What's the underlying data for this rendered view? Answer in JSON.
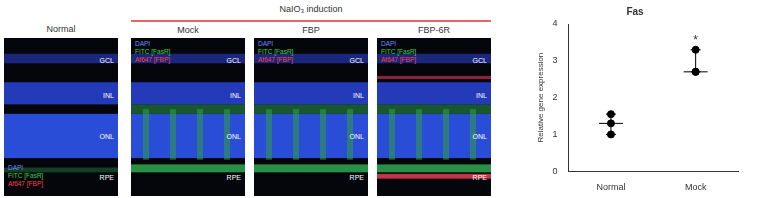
{
  "panels": {
    "header": "NaIO₃ induction",
    "items": [
      {
        "label": "Normal",
        "layers": [
          "GCL",
          "INL",
          "ONL",
          "RPE"
        ],
        "stains": [
          "DAPI",
          "FITC [FasR]",
          "Af647 [FBP]"
        ]
      },
      {
        "label": "Mock",
        "layers": [
          "GCL",
          "INL",
          "ONL",
          "RPE"
        ],
        "stains": [
          "DAPI",
          "FITC [FasR]",
          "Af647 [FBP]"
        ]
      },
      {
        "label": "FBP",
        "layers": [
          "GCL",
          "INL",
          "ONL",
          "RPE"
        ],
        "stains": [
          "DAPI",
          "FITC [FasR]",
          "Af647 [FBP]"
        ]
      },
      {
        "label": "FBP-6R",
        "layers": [
          "GCL",
          "INL",
          "ONL",
          "RPE"
        ],
        "stains": [
          "DAPI",
          "FITC [FasR]",
          "Af647 [FBP]"
        ]
      }
    ]
  },
  "chart_data": {
    "type": "scatter",
    "title": "Fas",
    "y_label": "Relative gene expression",
    "categories": [
      "Normal",
      "Mock"
    ],
    "points": [
      [
        1.55,
        1.3,
        1.0
      ],
      [
        3.3,
        2.7,
        2.7
      ]
    ],
    "median": [
      1.3,
      2.7
    ],
    "error_low": [
      1.0,
      2.7
    ],
    "error_high": [
      1.55,
      3.3
    ],
    "color": "#000000",
    "ylim": [
      0,
      4
    ],
    "yticks": [
      0,
      1,
      2,
      3,
      4
    ],
    "grid": false,
    "annotations": [
      {
        "text": "*",
        "category": "Mock",
        "y": 3.45
      }
    ]
  }
}
